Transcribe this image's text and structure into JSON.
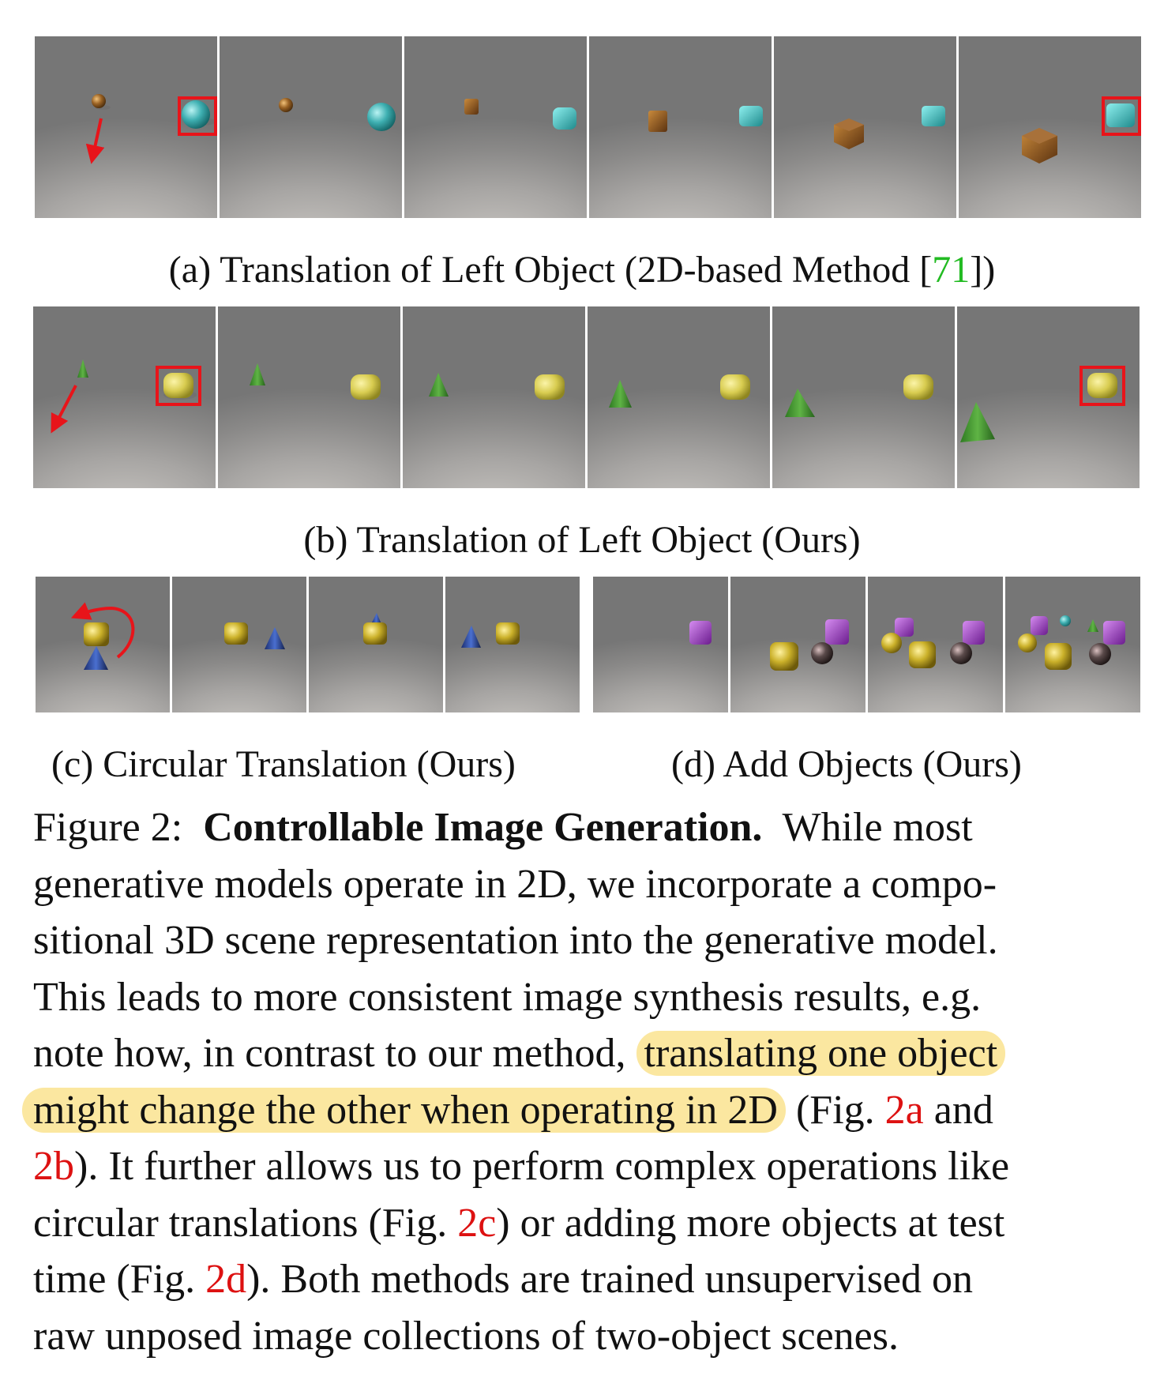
{
  "captions": {
    "a_prefix": "(a) Translation of Left Object (2D-based Method [",
    "a_ref": "71",
    "a_suffix": "])",
    "b": "(b) Translation of Left Object (Ours)",
    "c": "(c) Circular Translation (Ours)",
    "d": "(d) Add Objects (Ours)"
  },
  "paragraph": {
    "fig_label": "Figure 2:",
    "title": "Controllable Image Generation.",
    "l1_rest": "While most",
    "l2": "generative models operate in 2D, we incorporate a compo-",
    "l3": "sitional 3D scene representation into the generative model.",
    "l4": "This leads to more consistent image synthesis results, e.g.",
    "l5_pre": "note how, in contrast to our method,",
    "l5_hl": "translating one object",
    "l6_hl": "might change the other when operating in 2D",
    "l6_post": "(Fig.",
    "ref_2a": "2a",
    "l6_and": "and",
    "ref_2b": "2b",
    "l7_rest": "). It further allows us to perform complex operations like",
    "l8_pre": "circular translations (Fig.",
    "ref_2c": "2c",
    "l8_post": ") or adding more objects at test",
    "l9_pre": "time (Fig.",
    "ref_2d": "2d",
    "l9_post": "). Both methods are trained unsupervised on",
    "l10": "raw unposed image collections of two-object scenes."
  },
  "colors": {
    "highlight": "#fbe7a0",
    "ref_red": "#dd1111",
    "ref_green": "#22bb22",
    "annotation_red": "#e8141a"
  }
}
